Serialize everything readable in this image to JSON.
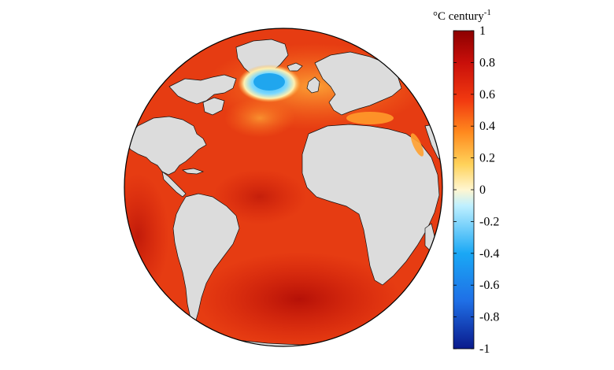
{
  "colorbar": {
    "unit_main": "°C century",
    "unit_exp": "-1",
    "min": -1,
    "max": 1,
    "ticks": [
      "1",
      "0.8",
      "0.6",
      "0.4",
      "0.2",
      "0",
      "-0.2",
      "-0.4",
      "-0.6",
      "-0.8",
      "-1"
    ],
    "colors": [
      "#0a1a8c",
      "#1f6fe6",
      "#1aa8f5",
      "#bff0ff",
      "#fff6d0",
      "#ffd25a",
      "#ff8a1e",
      "#f23a10",
      "#c90f0a",
      "#8c0000"
    ]
  },
  "map": {
    "ocean_color": "#e83a12",
    "land_color": "#dcdcdc",
    "cold_patch_color": "#22aaf0"
  }
}
